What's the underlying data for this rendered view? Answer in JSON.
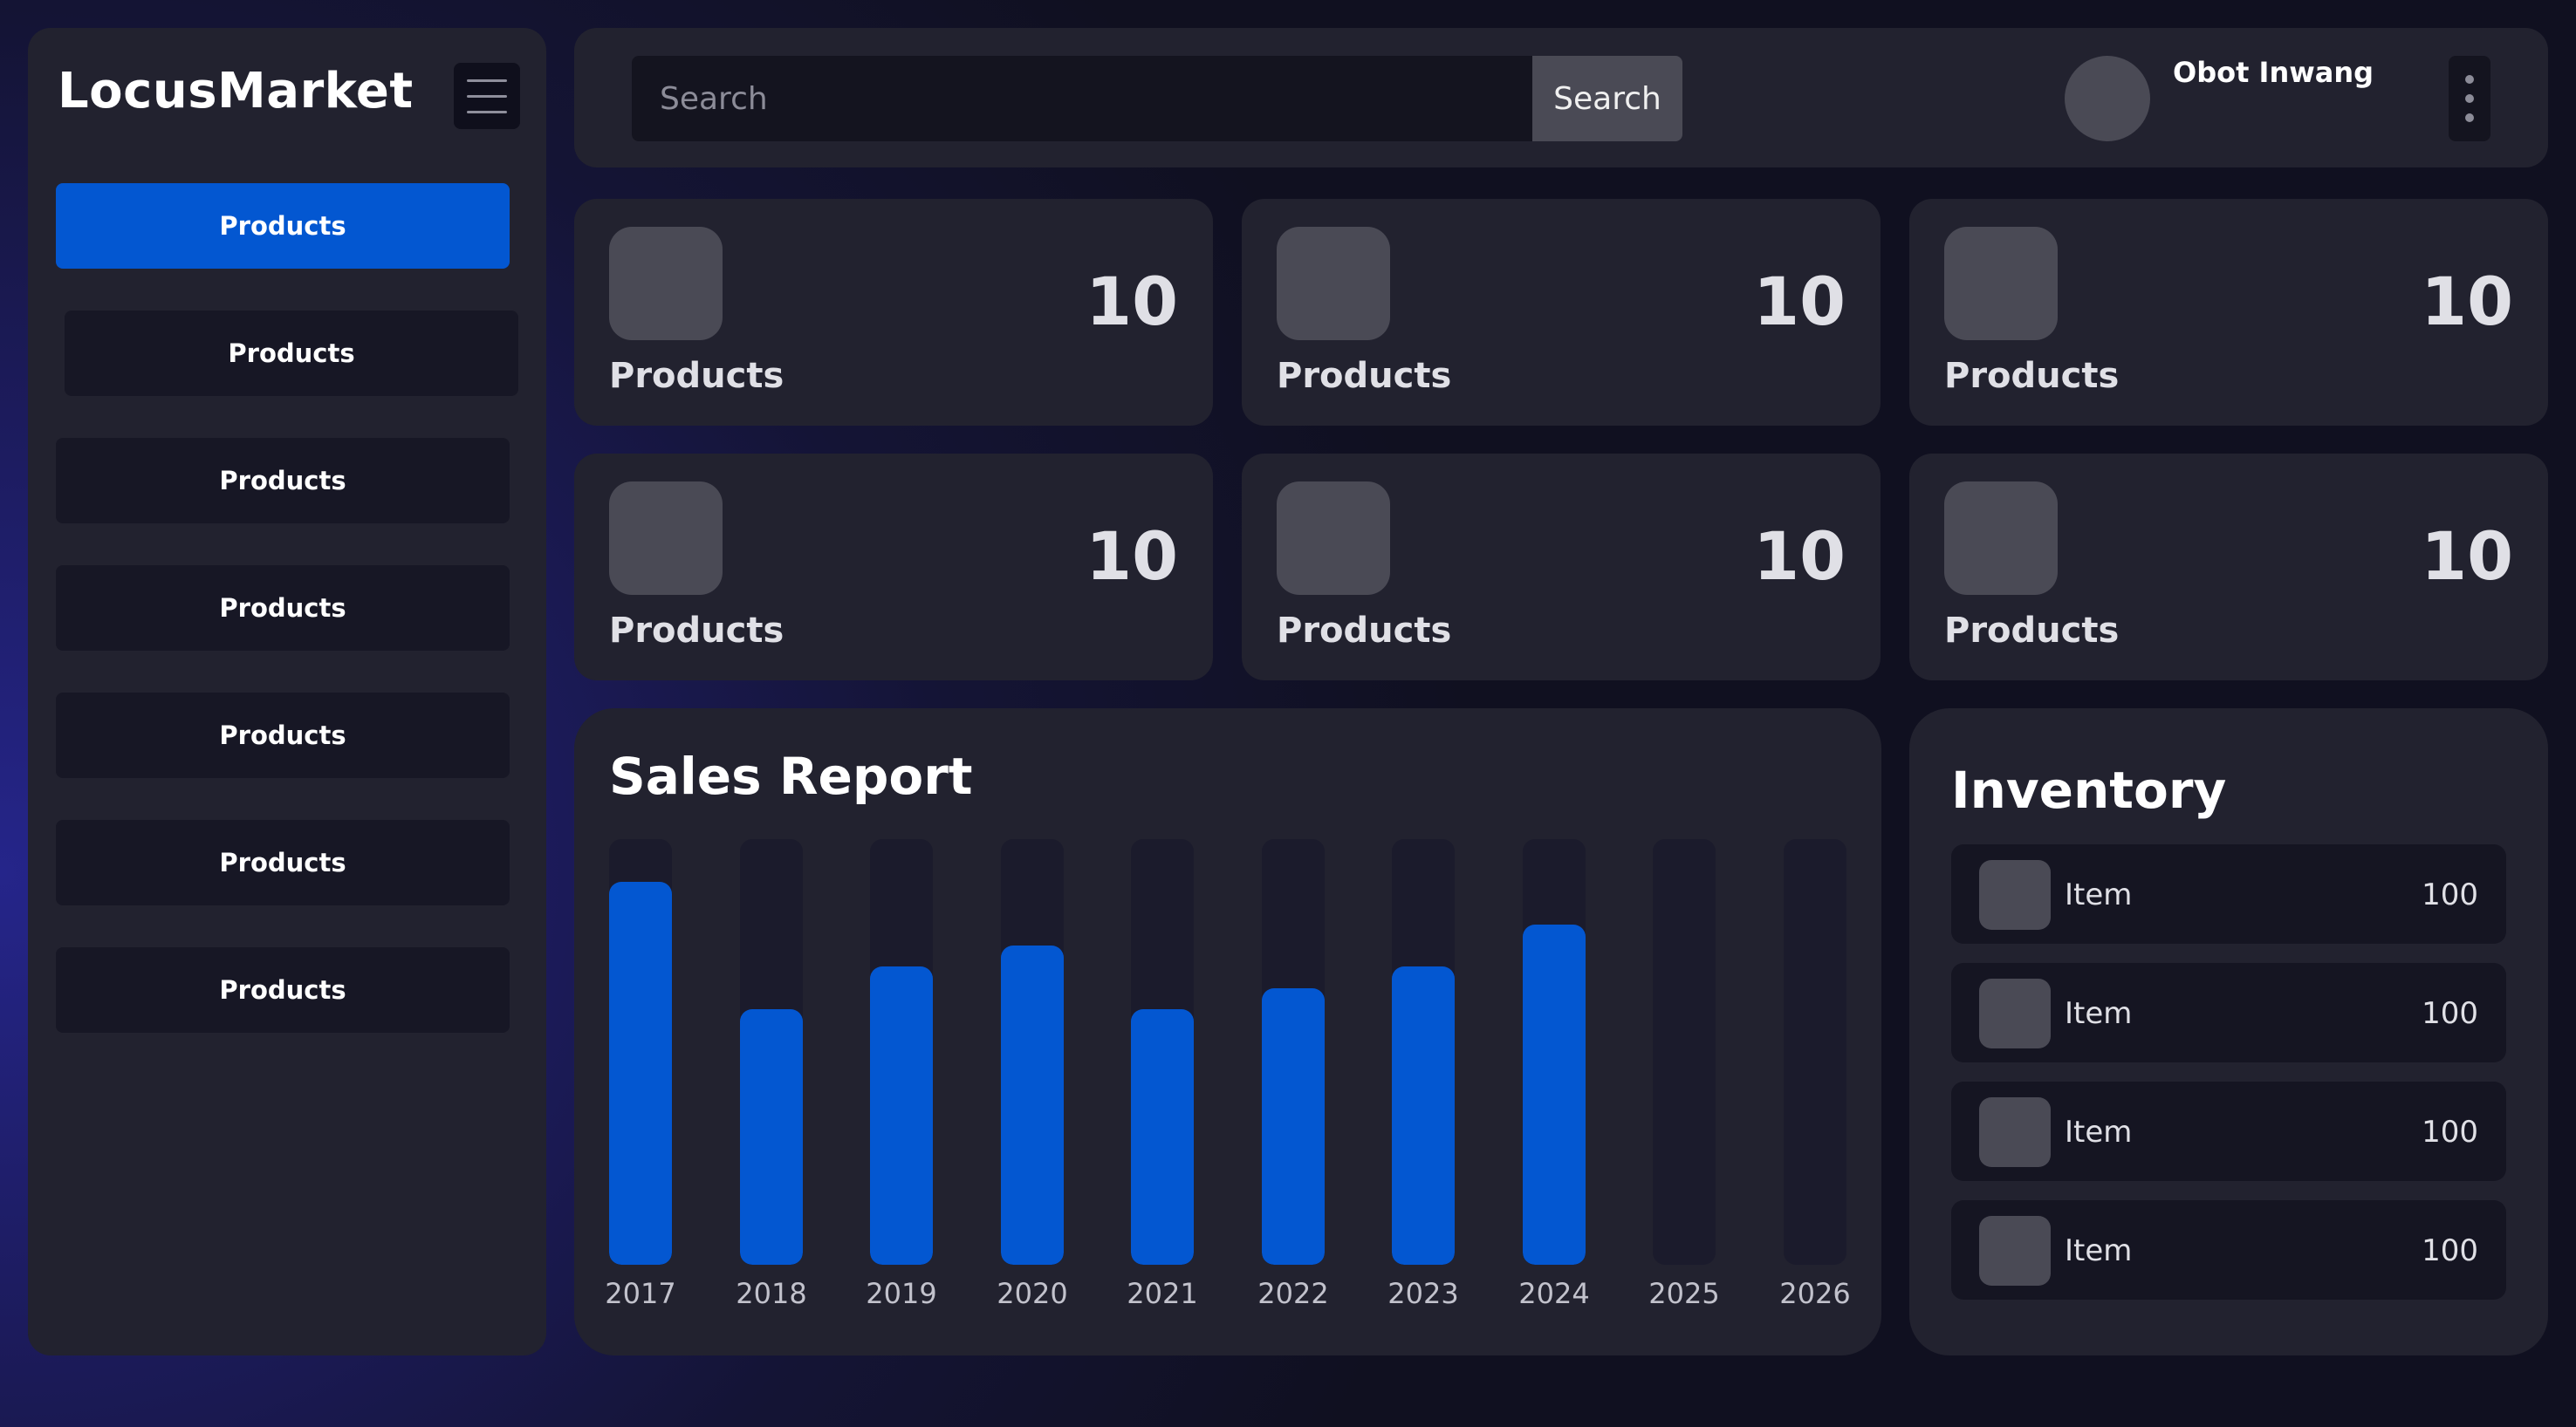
{
  "app": {
    "title": "LocusMarket"
  },
  "sidebar": {
    "items": [
      {
        "label": "Products",
        "active": true
      },
      {
        "label": "Products",
        "active": false
      },
      {
        "label": "Products",
        "active": false
      },
      {
        "label": "Products",
        "active": false
      },
      {
        "label": "Products",
        "active": false
      },
      {
        "label": "Products",
        "active": false
      },
      {
        "label": "Products",
        "active": false
      }
    ]
  },
  "header": {
    "search": {
      "placeholder": "Search",
      "value": "",
      "button_label": "Search"
    },
    "user": {
      "name": "Obot Inwang"
    }
  },
  "stats": [
    {
      "label": "Products",
      "value": "10"
    },
    {
      "label": "Products",
      "value": "10"
    },
    {
      "label": "Products",
      "value": "10"
    },
    {
      "label": "Products",
      "value": "10"
    },
    {
      "label": "Products",
      "value": "10"
    },
    {
      "label": "Products",
      "value": "10"
    }
  ],
  "sales_report": {
    "title": "Sales Report"
  },
  "chart_data": {
    "type": "bar",
    "title": "Sales Report",
    "categories": [
      "2017",
      "2018",
      "2019",
      "2020",
      "2021",
      "2022",
      "2023",
      "2024",
      "2025",
      "2026"
    ],
    "values": [
      90,
      60,
      70,
      75,
      60,
      65,
      70,
      80,
      0,
      0
    ],
    "ylim": [
      0,
      100
    ],
    "xlabel": "",
    "ylabel": "",
    "grid": false,
    "bar_color": "#0357d1",
    "track_color": "#1b1b2c"
  },
  "inventory": {
    "title": "Inventory",
    "items": [
      {
        "name": "Item",
        "qty": "100"
      },
      {
        "name": "Item",
        "qty": "100"
      },
      {
        "name": "Item",
        "qty": "100"
      },
      {
        "name": "Item",
        "qty": "100"
      }
    ]
  },
  "colors": {
    "accent": "#0357d1",
    "panel": "#22222f",
    "text": "#ffffff"
  }
}
